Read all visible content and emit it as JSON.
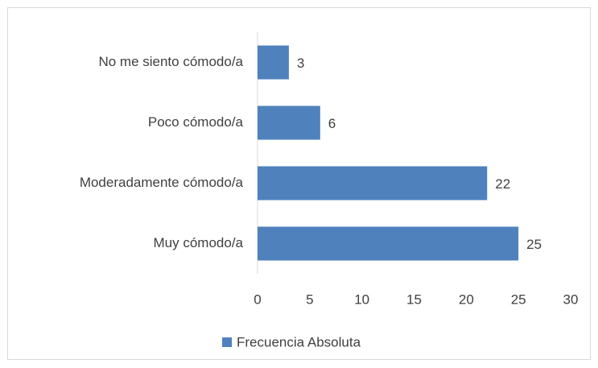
{
  "chart_data": {
    "type": "barh",
    "categories": [
      "No me siento cómodo/a",
      "Poco cómodo/a",
      "Moderadamente cómodo/a",
      "Muy cómodo/a"
    ],
    "series": [
      {
        "name": "Frecuencia Absoluta",
        "color": "#4f81bd",
        "values": [
          3,
          6,
          22,
          25
        ]
      }
    ],
    "xlim": [
      0,
      30
    ],
    "xticks": [
      0,
      5,
      10,
      15,
      20,
      25,
      30
    ],
    "grid": false,
    "legend": "bottom",
    "data_labels": true
  }
}
